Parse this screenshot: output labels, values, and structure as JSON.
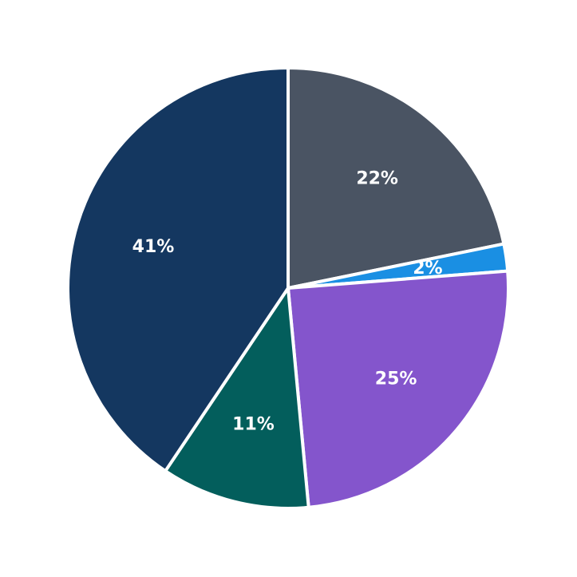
{
  "chart_data": {
    "type": "pie",
    "slices": [
      {
        "label": "22%",
        "value": 22,
        "color": "#4a5463"
      },
      {
        "label": "2%",
        "value": 2,
        "color": "#1a8fe3"
      },
      {
        "label": "25%",
        "value": 25,
        "color": "#8455cc"
      },
      {
        "label": "11%",
        "value": 11,
        "color": "#035e5c"
      },
      {
        "label": "41%",
        "value": 41,
        "color": "#143760"
      }
    ],
    "start_angle_deg": 90,
    "direction": "clockwise",
    "legend": "none"
  }
}
